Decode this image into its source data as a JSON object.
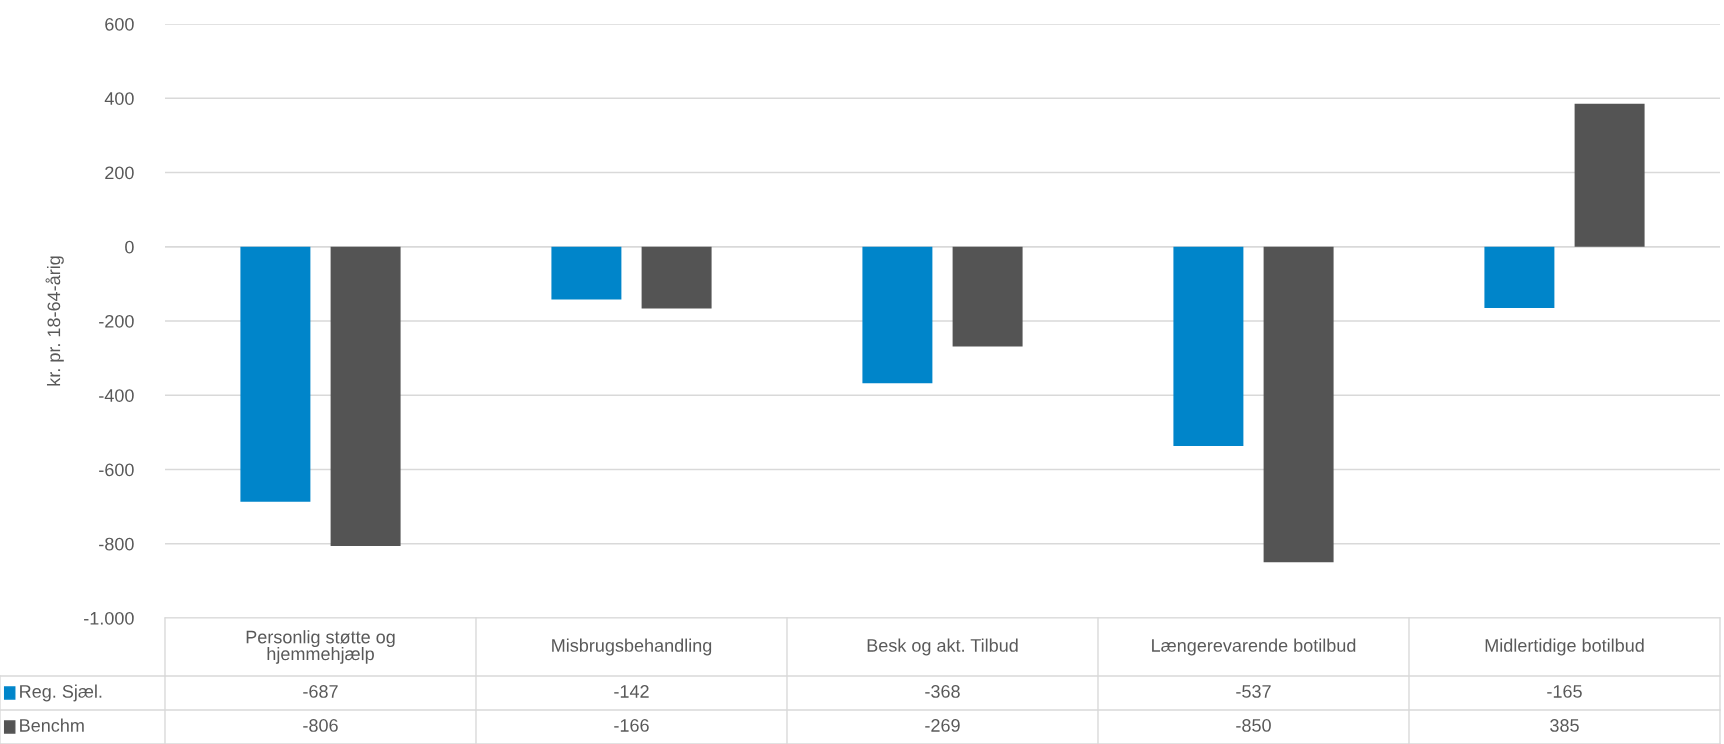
{
  "chart_data": {
    "type": "bar",
    "ylabel": "kr. pr. 18-64-årig",
    "categories": [
      "Personlig støtte og\nhjemmehjælp",
      "Misbrugsbehandling",
      "Besk og akt. Tilbud",
      "Længerevarende botilbud",
      "Midlertidige botilbud"
    ],
    "series": [
      {
        "name": "Reg. Sjæl.",
        "color": "#0085ca",
        "values": [
          -687,
          -142,
          -368,
          -537,
          -165
        ]
      },
      {
        "name": "Benchm",
        "color": "#545454",
        "values": [
          -806,
          -166,
          -269,
          -850,
          385
        ]
      }
    ],
    "ylim": [
      -1000,
      600
    ],
    "yticks": [
      {
        "value": -1000,
        "label": "-1.000"
      },
      -800,
      -600,
      -400,
      -200,
      0,
      200,
      400,
      600
    ],
    "grid": "y",
    "legend": "bottom",
    "data_labels": true
  }
}
